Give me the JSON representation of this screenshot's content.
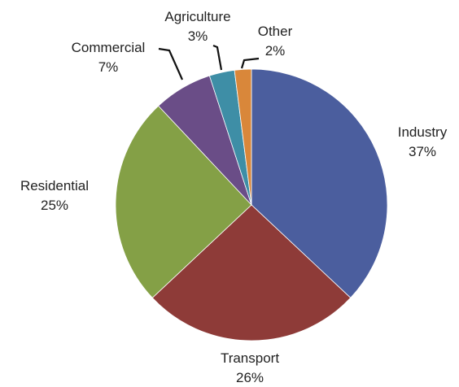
{
  "chart_data": {
    "type": "pie",
    "start": "12 o'clock",
    "direction": "clockwise",
    "slices": [
      {
        "label": "Industry",
        "value": 37,
        "value_label": "37%",
        "color": "#4B5E9E"
      },
      {
        "label": "Transport",
        "value": 26,
        "value_label": "26%",
        "color": "#8E3B38"
      },
      {
        "label": "Residential",
        "value": 25,
        "value_label": "25%",
        "color": "#84A046"
      },
      {
        "label": "Commercial",
        "value": 7,
        "value_label": "7%",
        "color": "#6A4D87"
      },
      {
        "label": "Agriculture",
        "value": 3,
        "value_label": "3%",
        "color": "#3E8EA6"
      },
      {
        "label": "Other",
        "value": 2,
        "value_label": "2%",
        "color": "#D9873A"
      }
    ]
  }
}
